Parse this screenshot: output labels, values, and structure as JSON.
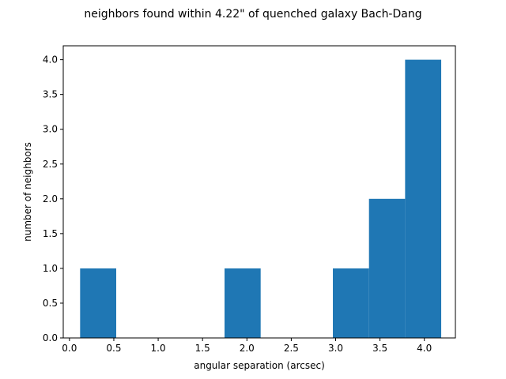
{
  "chart_data": {
    "type": "bar",
    "title": "neighbors found within 4.22\" of quenched galaxy Bach-Dang",
    "xlabel": "angular separation (arcsec)",
    "ylabel": "number of neighbors",
    "xlim": [
      -0.07,
      4.35
    ],
    "ylim": [
      0,
      4.2
    ],
    "xticks": [
      "0.0",
      "0.5",
      "1.0",
      "1.5",
      "2.0",
      "2.5",
      "3.0",
      "3.5",
      "4.0"
    ],
    "yticks": [
      "0.0",
      "0.5",
      "1.0",
      "1.5",
      "2.0",
      "2.5",
      "3.0",
      "3.5",
      "4.0"
    ],
    "bins": [
      {
        "x0": 0.12,
        "x1": 0.527,
        "count": 1
      },
      {
        "x0": 0.527,
        "x1": 0.934,
        "count": 0
      },
      {
        "x0": 0.934,
        "x1": 1.341,
        "count": 0
      },
      {
        "x0": 1.341,
        "x1": 1.748,
        "count": 0
      },
      {
        "x0": 1.748,
        "x1": 2.155,
        "count": 1
      },
      {
        "x0": 2.155,
        "x1": 2.562,
        "count": 0
      },
      {
        "x0": 2.562,
        "x1": 2.969,
        "count": 0
      },
      {
        "x0": 2.969,
        "x1": 3.376,
        "count": 1
      },
      {
        "x0": 3.376,
        "x1": 3.783,
        "count": 2
      },
      {
        "x0": 3.783,
        "x1": 4.19,
        "count": 4
      }
    ],
    "bar_color": "#1f77b4",
    "grid": false,
    "legend": "none"
  }
}
